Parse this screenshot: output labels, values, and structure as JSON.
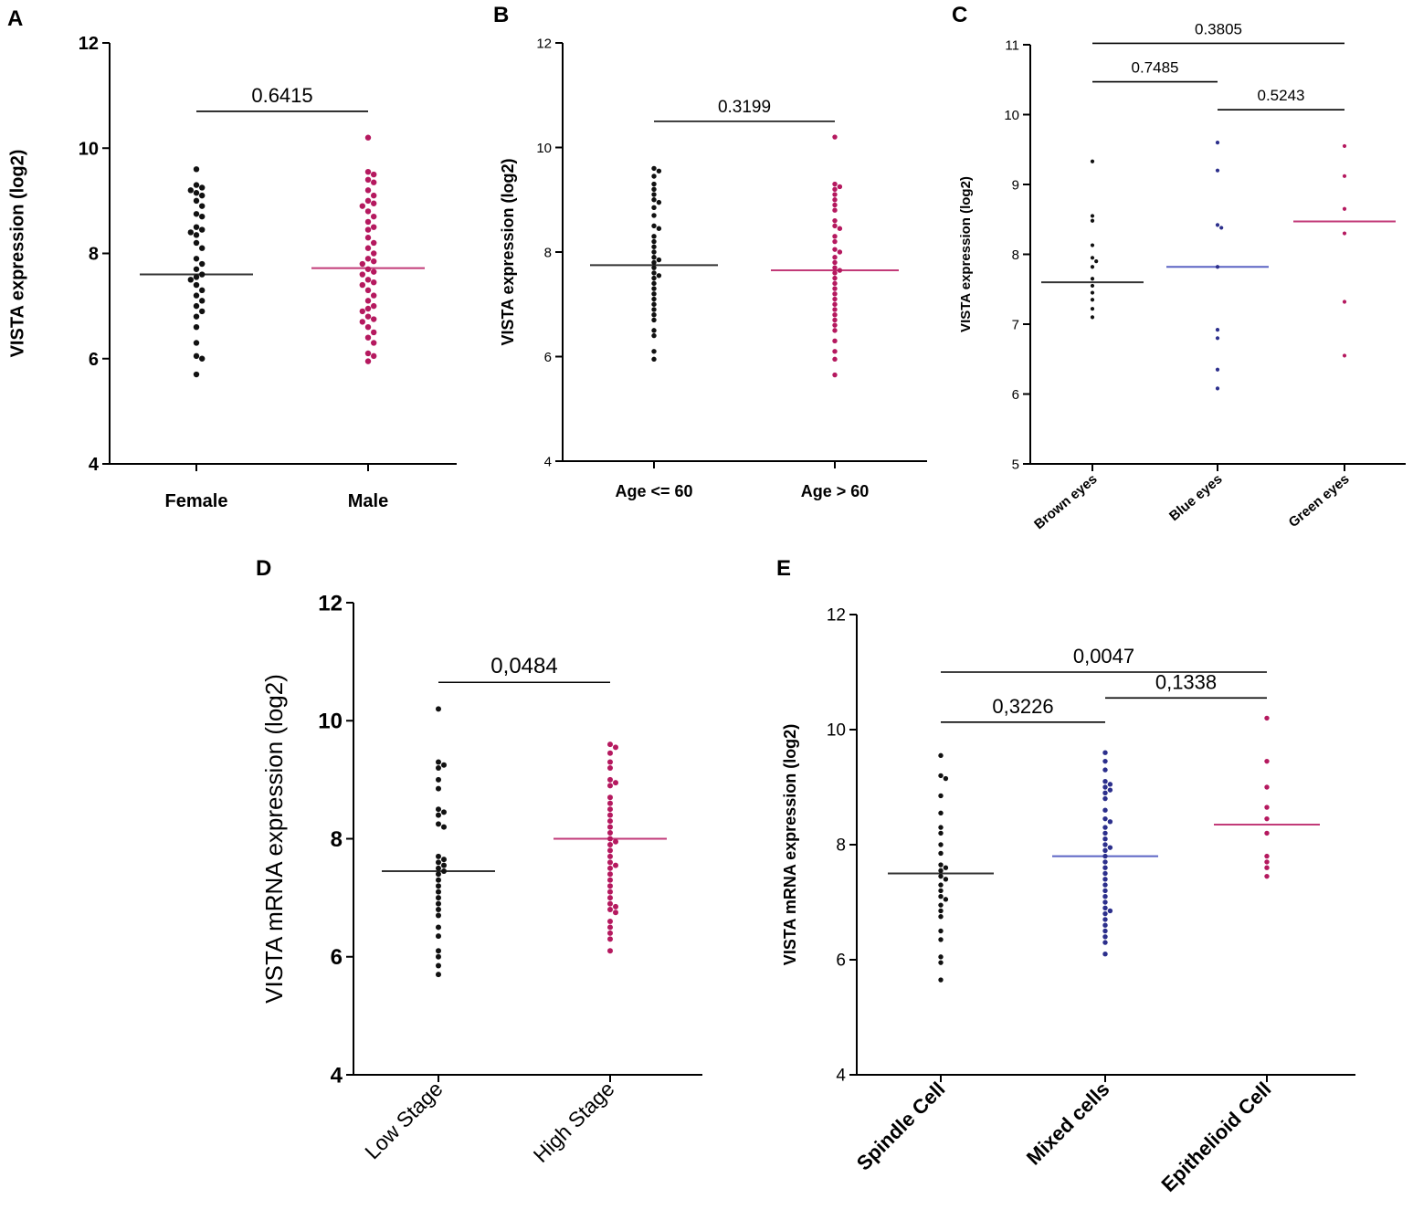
{
  "colors": {
    "black": "#111111",
    "magenta": "#b5195f",
    "blue": "#2c2f8c",
    "mean_blue": "#5b64c4",
    "mean_magenta": "#c23a78"
  },
  "chart_data": [
    {
      "id": "A",
      "type": "scatter",
      "ylabel": "VISTA expression (log2)",
      "ylim": [
        4,
        12
      ],
      "yticks": [
        4,
        6,
        8,
        10,
        12
      ],
      "categories": [
        "Female",
        "Male"
      ],
      "series": [
        {
          "name": "Female",
          "color": "black",
          "mean": 7.6,
          "values": [
            9.6,
            9.3,
            9.25,
            9.2,
            9.15,
            9.1,
            9.0,
            8.9,
            8.75,
            8.7,
            8.5,
            8.45,
            8.4,
            8.35,
            8.2,
            8.1,
            7.9,
            7.8,
            7.7,
            7.6,
            7.55,
            7.5,
            7.4,
            7.3,
            7.2,
            7.1,
            7.0,
            6.9,
            6.8,
            6.6,
            6.3,
            6.05,
            6.0,
            5.7
          ]
        },
        {
          "name": "Male",
          "color": "magenta",
          "mean": 7.72,
          "values": [
            10.2,
            9.55,
            9.5,
            9.4,
            9.35,
            9.2,
            9.1,
            9.0,
            8.95,
            8.9,
            8.8,
            8.7,
            8.6,
            8.5,
            8.45,
            8.3,
            8.2,
            8.1,
            8.0,
            7.9,
            7.85,
            7.8,
            7.7,
            7.65,
            7.6,
            7.5,
            7.45,
            7.4,
            7.3,
            7.2,
            7.1,
            7.0,
            6.95,
            6.9,
            6.8,
            6.75,
            6.7,
            6.6,
            6.5,
            6.4,
            6.3,
            6.1,
            6.05,
            5.95
          ]
        }
      ],
      "comparisons": [
        {
          "from": 0,
          "to": 1,
          "label": "0.6415",
          "y": 10.7
        }
      ]
    },
    {
      "id": "B",
      "type": "scatter",
      "ylabel": "VISTA expression (log2)",
      "ylim": [
        4,
        12
      ],
      "yticks": [
        4,
        6,
        8,
        10,
        12
      ],
      "categories": [
        "Age <= 60",
        "Age > 60"
      ],
      "series": [
        {
          "name": "Age <= 60",
          "color": "black",
          "mean": 7.75,
          "values": [
            9.6,
            9.55,
            9.45,
            9.3,
            9.2,
            9.1,
            9.0,
            8.95,
            8.85,
            8.7,
            8.5,
            8.45,
            8.3,
            8.2,
            8.1,
            8.0,
            7.9,
            7.85,
            7.8,
            7.7,
            7.6,
            7.55,
            7.5,
            7.4,
            7.3,
            7.2,
            7.1,
            7.0,
            6.9,
            6.8,
            6.7,
            6.5,
            6.4,
            6.1,
            5.95
          ]
        },
        {
          "name": "Age > 60",
          "color": "magenta",
          "mean": 7.65,
          "values": [
            10.2,
            9.3,
            9.25,
            9.2,
            9.1,
            9.0,
            8.9,
            8.8,
            8.6,
            8.5,
            8.45,
            8.3,
            8.2,
            8.05,
            8.0,
            7.9,
            7.8,
            7.7,
            7.65,
            7.6,
            7.5,
            7.4,
            7.3,
            7.2,
            7.1,
            7.0,
            6.9,
            6.8,
            6.7,
            6.6,
            6.5,
            6.3,
            6.1,
            5.95,
            5.65
          ]
        }
      ],
      "comparisons": [
        {
          "from": 0,
          "to": 1,
          "label": "0.3199",
          "y": 10.5
        }
      ]
    },
    {
      "id": "C",
      "type": "scatter",
      "ylabel": "VISTA expression (log2)",
      "ylim": [
        5,
        11
      ],
      "yticks": [
        5,
        6,
        7,
        8,
        9,
        10,
        11
      ],
      "categories": [
        "Brown eyes",
        "Blue eyes",
        "Green eyes"
      ],
      "series": [
        {
          "name": "Brown eyes",
          "color": "black",
          "mean": 7.6,
          "values": [
            9.33,
            8.55,
            8.48,
            8.13,
            7.95,
            7.9,
            7.82,
            7.65,
            7.55,
            7.45,
            7.35,
            7.22,
            7.1
          ]
        },
        {
          "name": "Blue eyes",
          "color": "blue",
          "mean": 7.82,
          "values": [
            9.6,
            9.2,
            8.42,
            8.38,
            7.82,
            6.92,
            6.8,
            6.35,
            6.08
          ]
        },
        {
          "name": "Green eyes",
          "color": "magenta",
          "mean": 8.47,
          "values": [
            9.55,
            9.12,
            8.65,
            8.3,
            7.32,
            6.55
          ]
        }
      ],
      "comparisons": [
        {
          "from": 0,
          "to": 2,
          "label": "0.3805",
          "y": 11.02
        },
        {
          "from": 0,
          "to": 1,
          "label": "0.7485",
          "y": 10.47
        },
        {
          "from": 1,
          "to": 2,
          "label": "0.5243",
          "y": 10.07
        }
      ]
    },
    {
      "id": "D",
      "type": "scatter",
      "ylabel": "VISTA mRNA expression (log2)",
      "ylim": [
        4,
        12
      ],
      "yticks": [
        4,
        6,
        8,
        10,
        12
      ],
      "categories": [
        "Low Stage",
        "High Stage"
      ],
      "series": [
        {
          "name": "Low Stage",
          "color": "black",
          "mean": 7.45,
          "values": [
            10.2,
            9.3,
            9.25,
            9.2,
            9.0,
            8.85,
            8.5,
            8.45,
            8.4,
            8.25,
            8.2,
            7.7,
            7.65,
            7.6,
            7.55,
            7.5,
            7.45,
            7.4,
            7.3,
            7.2,
            7.1,
            7.0,
            6.9,
            6.8,
            6.7,
            6.5,
            6.35,
            6.1,
            6.0,
            5.85,
            5.7
          ]
        },
        {
          "name": "High Stage",
          "color": "magenta",
          "mean": 8.0,
          "values": [
            9.6,
            9.55,
            9.45,
            9.3,
            9.2,
            9.0,
            8.95,
            8.9,
            8.7,
            8.6,
            8.5,
            8.4,
            8.3,
            8.2,
            8.1,
            8.0,
            7.95,
            7.9,
            7.8,
            7.7,
            7.6,
            7.55,
            7.5,
            7.4,
            7.3,
            7.2,
            7.1,
            7.0,
            6.9,
            6.85,
            6.8,
            6.75,
            6.6,
            6.5,
            6.4,
            6.3,
            6.1
          ]
        }
      ],
      "comparisons": [
        {
          "from": 0,
          "to": 1,
          "label": "0,0484",
          "y": 10.65
        }
      ]
    },
    {
      "id": "E",
      "type": "scatter",
      "ylabel": "VISTA mRNA expression (log2)",
      "ylim": [
        4,
        12
      ],
      "yticks": [
        4,
        6,
        8,
        10,
        12
      ],
      "categories": [
        "Spindle Cell",
        "Mixed cells",
        "Epithelioid Cell"
      ],
      "series": [
        {
          "name": "Spindle Cell",
          "color": "black",
          "mean": 7.5,
          "values": [
            9.55,
            9.2,
            9.15,
            8.85,
            8.55,
            8.3,
            8.2,
            8.0,
            7.85,
            7.65,
            7.6,
            7.55,
            7.45,
            7.4,
            7.3,
            7.2,
            7.1,
            7.05,
            6.95,
            6.85,
            6.75,
            6.5,
            6.35,
            6.05,
            5.95,
            5.65
          ]
        },
        {
          "name": "Mixed cells",
          "color": "blue",
          "mean": 7.8,
          "values": [
            9.6,
            9.45,
            9.3,
            9.1,
            9.05,
            9.0,
            8.95,
            8.9,
            8.8,
            8.6,
            8.45,
            8.4,
            8.3,
            8.2,
            8.1,
            8.0,
            7.95,
            7.9,
            7.8,
            7.7,
            7.6,
            7.5,
            7.4,
            7.3,
            7.2,
            7.1,
            7.0,
            6.9,
            6.85,
            6.8,
            6.7,
            6.6,
            6.5,
            6.4,
            6.3,
            6.1
          ]
        },
        {
          "name": "Epithelioid Cell",
          "color": "magenta",
          "mean": 8.35,
          "values": [
            10.2,
            9.45,
            9.0,
            8.65,
            8.45,
            8.2,
            7.8,
            7.7,
            7.6,
            7.45
          ]
        }
      ],
      "comparisons": [
        {
          "from": 0,
          "to": 2,
          "label": "0,0047",
          "y": 11.0
        },
        {
          "from": 1,
          "to": 2,
          "label": "0,1338",
          "y": 10.55
        },
        {
          "from": 0,
          "to": 1,
          "label": "0,3226",
          "y": 10.13
        }
      ]
    }
  ]
}
